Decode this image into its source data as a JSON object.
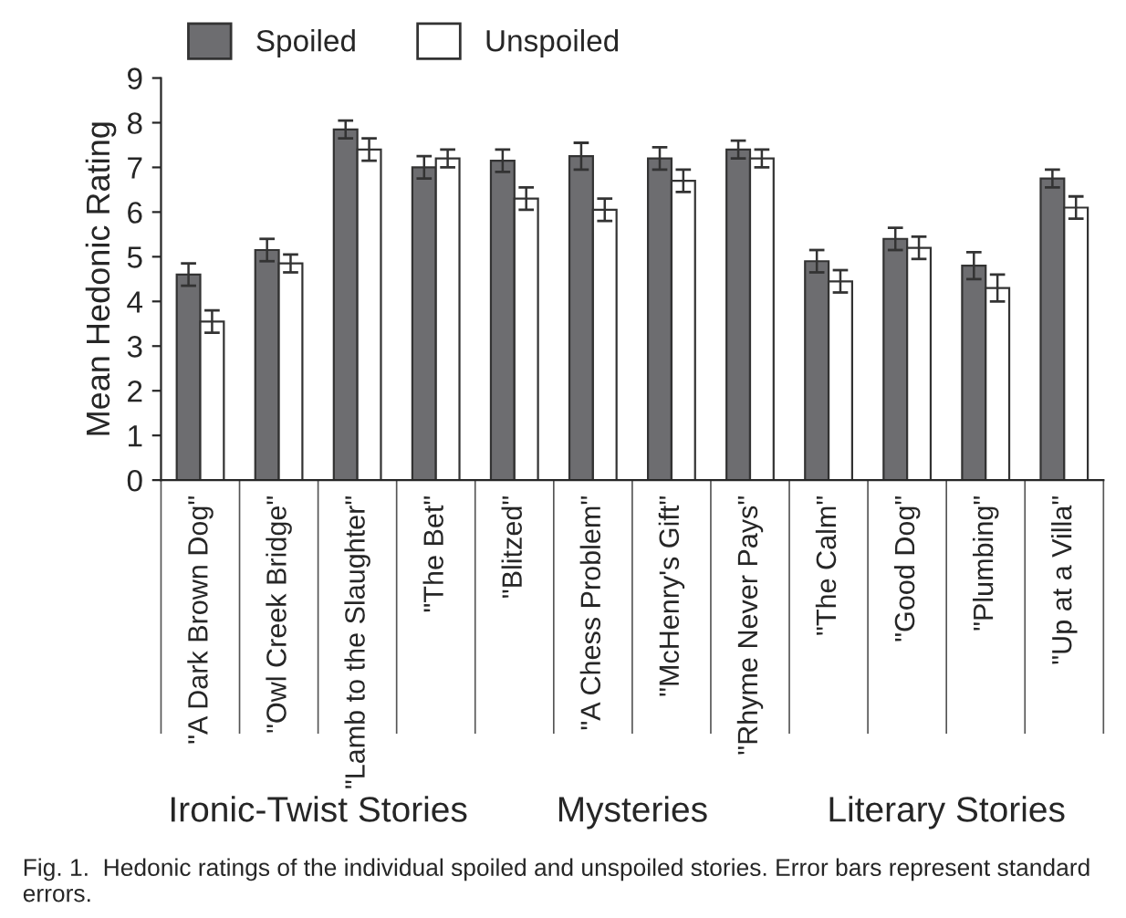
{
  "chart_data": {
    "type": "bar",
    "ylabel": "Mean Hedonic Rating",
    "categories": [
      "\"A Dark Brown Dog\"",
      "\"Owl Creek Bridge\"",
      "\"Lamb to the Slaughter\"",
      "\"The Bet\"",
      "\"Blitzed\"",
      "\"A Chess Problem\"",
      "\"McHenry's Gift\"",
      "\"Rhyme Never Pays\"",
      "\"The Calm\"",
      "\"Good Dog\"",
      "\"Plumbing\"",
      "\"Up at a Villa\""
    ],
    "series": [
      {
        "name": "Spoiled",
        "color": "#6d6d70",
        "values": [
          4.6,
          5.15,
          7.85,
          7.0,
          7.15,
          7.25,
          7.2,
          7.4,
          4.9,
          5.4,
          4.8,
          6.75
        ],
        "errors": [
          0.25,
          0.25,
          0.2,
          0.25,
          0.25,
          0.3,
          0.25,
          0.2,
          0.25,
          0.25,
          0.3,
          0.2
        ]
      },
      {
        "name": "Unspoiled",
        "color": "#ffffff",
        "values": [
          3.55,
          4.85,
          7.4,
          7.2,
          6.3,
          6.05,
          6.7,
          7.2,
          4.45,
          5.2,
          4.3,
          6.1
        ],
        "errors": [
          0.25,
          0.2,
          0.25,
          0.2,
          0.25,
          0.25,
          0.25,
          0.2,
          0.25,
          0.25,
          0.3,
          0.25
        ]
      }
    ],
    "ylim": [
      0,
      9
    ],
    "yticks": [
      0,
      1,
      2,
      3,
      4,
      5,
      6,
      7,
      8,
      9
    ],
    "grid": false,
    "legend": "top left",
    "annotations": [
      "Ironic-Twist Stories",
      "Mysteries",
      "Literary Stories",
      "Fig. 1.  Hedonic ratings of the individual spoiled and unspoiled stories. Error bars represent standard errors."
    ]
  }
}
